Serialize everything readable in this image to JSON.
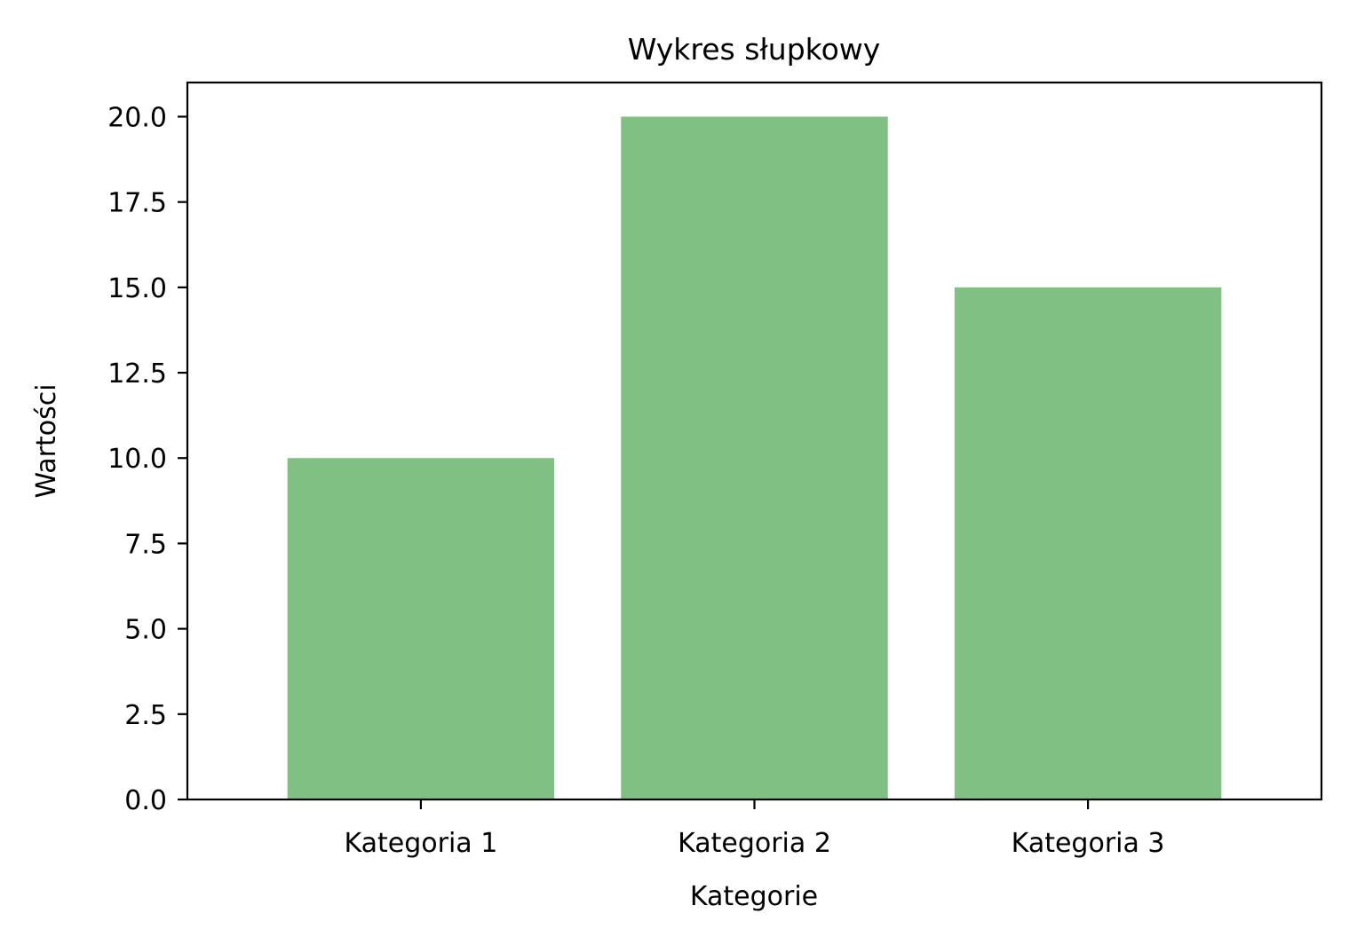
{
  "chart_data": {
    "type": "bar",
    "title": "Wykres słupkowy",
    "xlabel": "Kategorie",
    "ylabel": "Wartości",
    "categories": [
      "Kategoria 1",
      "Kategoria 2",
      "Kategoria 3"
    ],
    "values": [
      10,
      20,
      15
    ],
    "ylim": [
      0,
      21
    ],
    "yticks": [
      "0.0",
      "2.5",
      "5.0",
      "7.5",
      "10.0",
      "12.5",
      "15.0",
      "17.5",
      "20.0"
    ],
    "grid": false,
    "legend": "none",
    "colors": {
      "bar": "#80c183",
      "axis": "#000000",
      "background": "#ffffff"
    }
  }
}
